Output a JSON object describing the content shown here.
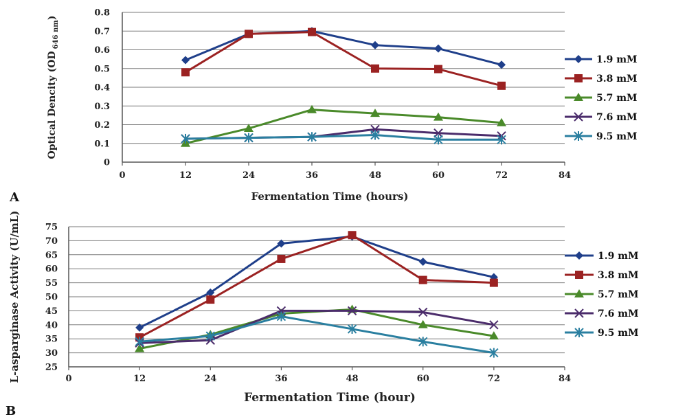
{
  "chart_data": [
    {
      "panel": "A",
      "type": "line",
      "title": "",
      "xlabel": "Fermentation Time (hours)",
      "ylabel": "Optical Dencity (OD",
      "ylabel_sub": "646 nm",
      "ylabel_end": ")",
      "xlim": [
        0,
        84
      ],
      "ylim": [
        0,
        0.8
      ],
      "x_ticks": [
        0,
        12,
        24,
        36,
        48,
        60,
        72,
        84
      ],
      "y_ticks": [
        0,
        0.1,
        0.2,
        0.3,
        0.4,
        0.5,
        0.6,
        0.7,
        0.8
      ],
      "y_tick_labels": [
        "0",
        "0.1",
        "0.2",
        "0.3",
        "0.4",
        "0.5",
        "0.6",
        "0.7",
        "0.8"
      ],
      "grid": "horizontal",
      "legend": "right",
      "x": [
        12,
        24,
        36,
        48,
        60,
        72
      ],
      "series": [
        {
          "name": "1.9 mM",
          "values": [
            0.545,
            0.685,
            0.7,
            0.625,
            0.607,
            0.52
          ],
          "color": "#1f3f8a",
          "marker": "diamond"
        },
        {
          "name": "3.8 mM",
          "values": [
            0.48,
            0.685,
            0.695,
            0.5,
            0.497,
            0.408
          ],
          "color": "#9b2222",
          "marker": "square"
        },
        {
          "name": "5.7 mM",
          "values": [
            0.1,
            0.18,
            0.28,
            0.26,
            0.24,
            0.21
          ],
          "color": "#4a8a2a",
          "marker": "triangle"
        },
        {
          "name": "7.6 mM",
          "values": [
            0.125,
            0.13,
            0.135,
            0.175,
            0.155,
            0.14
          ],
          "color": "#4b2c6b",
          "marker": "x"
        },
        {
          "name": "9.5 mM",
          "values": [
            0.125,
            0.13,
            0.135,
            0.145,
            0.12,
            0.12
          ],
          "color": "#2a7fa0",
          "marker": "asterisk"
        }
      ]
    },
    {
      "panel": "B",
      "type": "line",
      "title": "",
      "xlabel": "Fermentation Time  (hour)",
      "ylabel": "L-asparginase Activity  (U/mL)",
      "xlim": [
        0,
        84
      ],
      "ylim": [
        25,
        75
      ],
      "x_ticks": [
        0,
        12,
        24,
        36,
        48,
        60,
        72,
        84
      ],
      "y_ticks": [
        25,
        30,
        35,
        40,
        45,
        50,
        55,
        60,
        65,
        70,
        75
      ],
      "y_tick_labels": [
        "25",
        "30",
        "35",
        "40",
        "45",
        "50",
        "55",
        "60",
        "65",
        "70",
        "75"
      ],
      "grid": "horizontal",
      "legend": "right",
      "x": [
        12,
        24,
        36,
        48,
        60,
        72
      ],
      "series": [
        {
          "name": "1.9 mM",
          "values": [
            39,
            51.5,
            69,
            71.5,
            62.5,
            57
          ],
          "color": "#1f3f8a",
          "marker": "diamond"
        },
        {
          "name": "3.8 mM",
          "values": [
            35.5,
            49,
            63.5,
            72,
            56,
            55
          ],
          "color": "#9b2222",
          "marker": "square"
        },
        {
          "name": "5.7 mM",
          "values": [
            31.5,
            36.5,
            44,
            45.5,
            40,
            36
          ],
          "color": "#4a8a2a",
          "marker": "triangle"
        },
        {
          "name": "7.6 mM",
          "values": [
            33.5,
            34.5,
            45,
            45,
            44.5,
            40
          ],
          "color": "#4b2c6b",
          "marker": "x"
        },
        {
          "name": "9.5 mM",
          "values": [
            34,
            36,
            43,
            38.5,
            34,
            30
          ],
          "color": "#2a7fa0",
          "marker": "asterisk"
        }
      ]
    }
  ]
}
